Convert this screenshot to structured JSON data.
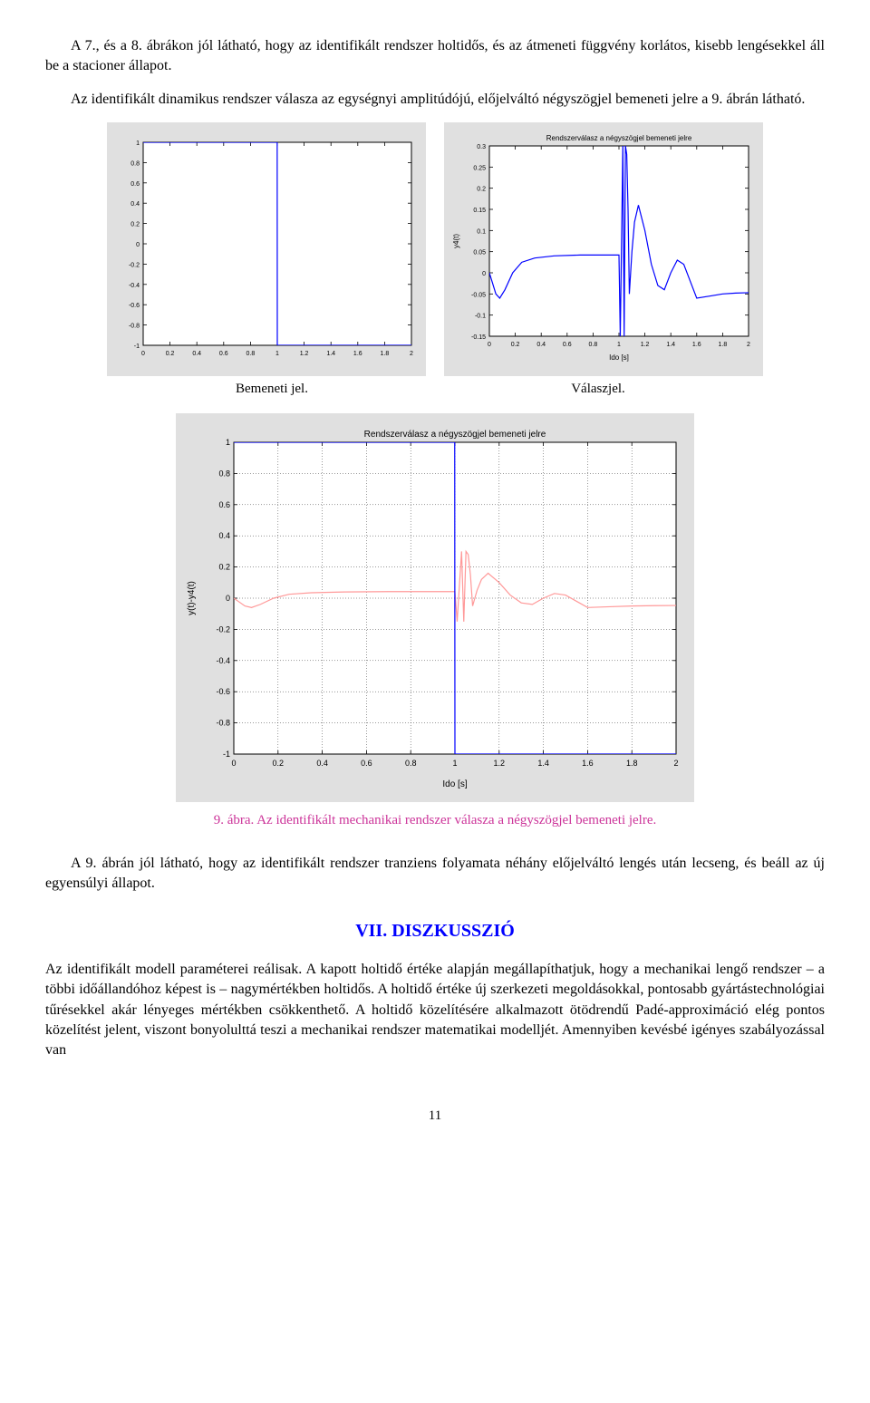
{
  "paragraphs": {
    "p1": "A 7., és a 8. ábrákon jól látható, hogy az identifikált rendszer holtidős, és az átmeneti függvény korlátos, kisebb lengésekkel áll be a stacioner állapot.",
    "p2": "Az identifikált dinamikus rendszer válasza az egységnyi amplitúdójú, előjelváltó négyszögjel bemeneti jelre a 9. ábrán látható.",
    "p3": "A 9. ábrán jól látható, hogy az identifikált rendszer tranziens folyamata néhány előjelváltó lengés után lecseng, és beáll az új egyensúlyi állapot.",
    "p4": "Az identifikált modell paraméterei reálisak. A kapott holtidő értéke alapján megállapíthatjuk, hogy a mechanikai lengő rendszer – a többi időállandóhoz képest is – nagymértékben holtidős. A holtidő értéke új szerkezeti megoldásokkal, pontosabb gyártástechnológiai tűrésekkel akár lényeges mértékben csökkenthető. A holtidő közelítésére alkalmazott ötödrendű Padé-approximáció elég pontos közelítést jelent, viszont bonyolulttá teszi a mechanikai rendszer matematikai modelljét. Amennyiben kevésbé igényes szabályozással van"
  },
  "section_heading": "VII. DISZKUSSZIÓ",
  "figure_caption": "9. ábra. Az identifikált mechanikai rendszer válasza a négyszögjel bemeneti jelre.",
  "chart_captions": {
    "left": "Bemeneti jel.",
    "right": "Válaszjel."
  },
  "page_number": "11",
  "chart1": {
    "type": "line",
    "title": "",
    "xlim": [
      0,
      2
    ],
    "ylim": [
      -1,
      1
    ],
    "xtick_step": 0.2,
    "ytick_step": 0.2,
    "xtick_labels": [
      "0",
      "0.2",
      "0.4",
      "0.6",
      "0.8",
      "1",
      "1.2",
      "1.4",
      "1.6",
      "1.8",
      "2"
    ],
    "ytick_labels": [
      "-1",
      "-0.8",
      "-0.6",
      "-0.4",
      "-0.2",
      "0",
      "0.2",
      "0.4",
      "0.6",
      "0.8",
      "1"
    ],
    "background_color": "#e0e0e0",
    "plot_bg": "#ffffff",
    "grid_color": "#000000",
    "tick_color": "#000000",
    "line_color": "#0000ff",
    "line_width": 1.2,
    "tick_fontsize": 7,
    "data": {
      "x": [
        0,
        0.999,
        1.0,
        2.0
      ],
      "y": [
        1,
        1,
        -1,
        -1
      ]
    }
  },
  "chart2": {
    "type": "line",
    "title": "Rendszerválasz a négyszögjel bemeneti jelre",
    "title_fontsize": 8,
    "xlabel": "Ido [s]",
    "ylabel": "y4(t)",
    "label_fontsize": 8,
    "xlim": [
      0,
      2
    ],
    "ylim": [
      -0.15,
      0.3
    ],
    "xtick_step": 0.2,
    "ytick_step": 0.05,
    "xtick_labels": [
      "0",
      "0.2",
      "0.4",
      "0.6",
      "0.8",
      "1",
      "1.2",
      "1.4",
      "1.6",
      "1.8",
      "2"
    ],
    "ytick_labels": [
      "-0.15",
      "-0.1",
      "-0.05",
      "0",
      "0.05",
      "0.1",
      "0.15",
      "0.2",
      "0.25",
      "0.3"
    ],
    "background_color": "#e0e0e0",
    "plot_bg": "#ffffff",
    "grid_color": "#000000",
    "line_color": "#0000ff",
    "line_width": 1.2,
    "tick_fontsize": 7,
    "data": {
      "x": [
        0,
        0.02,
        0.05,
        0.08,
        0.12,
        0.18,
        0.25,
        0.35,
        0.5,
        0.7,
        0.9,
        1.0,
        1.01,
        1.03,
        1.04,
        1.05,
        1.06,
        1.07,
        1.08,
        1.09,
        1.1,
        1.12,
        1.15,
        1.2,
        1.25,
        1.3,
        1.35,
        1.4,
        1.45,
        1.5,
        1.55,
        1.6,
        1.7,
        1.8,
        1.9,
        2.0
      ],
      "y": [
        0,
        -0.02,
        -0.05,
        -0.06,
        -0.04,
        0.0,
        0.025,
        0.035,
        0.04,
        0.042,
        0.042,
        0.042,
        -0.15,
        0.3,
        -0.15,
        0.3,
        0.28,
        0.15,
        -0.05,
        0.0,
        0.05,
        0.12,
        0.16,
        0.1,
        0.02,
        -0.03,
        -0.04,
        0.0,
        0.03,
        0.02,
        -0.02,
        -0.06,
        -0.055,
        -0.05,
        -0.048,
        -0.047
      ]
    }
  },
  "chart3": {
    "type": "line",
    "title": "Rendszerválasz a négyszögjel bemeneti jelre",
    "title_fontsize": 10,
    "xlabel": "Ido [s]",
    "ylabel": "y(t)-y4(t)",
    "label_fontsize": 10,
    "xlim": [
      0,
      2
    ],
    "ylim": [
      -1,
      1
    ],
    "xtick_step": 0.2,
    "ytick_step": 0.2,
    "xtick_labels": [
      "0",
      "0.2",
      "0.4",
      "0.6",
      "0.8",
      "1",
      "1.2",
      "1.4",
      "1.6",
      "1.8",
      "2"
    ],
    "ytick_labels": [
      "-1",
      "-0.8",
      "-0.6",
      "-0.4",
      "-0.2",
      "0",
      "0.2",
      "0.4",
      "0.6",
      "0.8",
      "1"
    ],
    "background_color": "#e0e0e0",
    "plot_bg": "#ffffff",
    "grid_color": "#000000",
    "line1_color": "#0000ff",
    "line2_color": "#ff9999",
    "line_width": 1.2,
    "tick_fontsize": 9,
    "line1_data": {
      "x": [
        0,
        0.999,
        1.0,
        2.0
      ],
      "y": [
        1,
        1,
        -1,
        -1
      ]
    },
    "line2_data": {
      "x": [
        0,
        0.02,
        0.05,
        0.08,
        0.12,
        0.18,
        0.25,
        0.35,
        0.5,
        0.7,
        0.9,
        1.0,
        1.01,
        1.03,
        1.04,
        1.05,
        1.06,
        1.07,
        1.08,
        1.09,
        1.1,
        1.12,
        1.15,
        1.2,
        1.25,
        1.3,
        1.35,
        1.4,
        1.45,
        1.5,
        1.55,
        1.6,
        1.7,
        1.8,
        1.9,
        2.0
      ],
      "y": [
        0,
        -0.02,
        -0.05,
        -0.06,
        -0.04,
        0.0,
        0.025,
        0.035,
        0.04,
        0.042,
        0.042,
        0.042,
        -0.15,
        0.3,
        -0.15,
        0.3,
        0.28,
        0.15,
        -0.05,
        0.0,
        0.05,
        0.12,
        0.16,
        0.1,
        0.02,
        -0.03,
        -0.04,
        0.0,
        0.03,
        0.02,
        -0.02,
        -0.06,
        -0.055,
        -0.05,
        -0.048,
        -0.047
      ]
    }
  }
}
